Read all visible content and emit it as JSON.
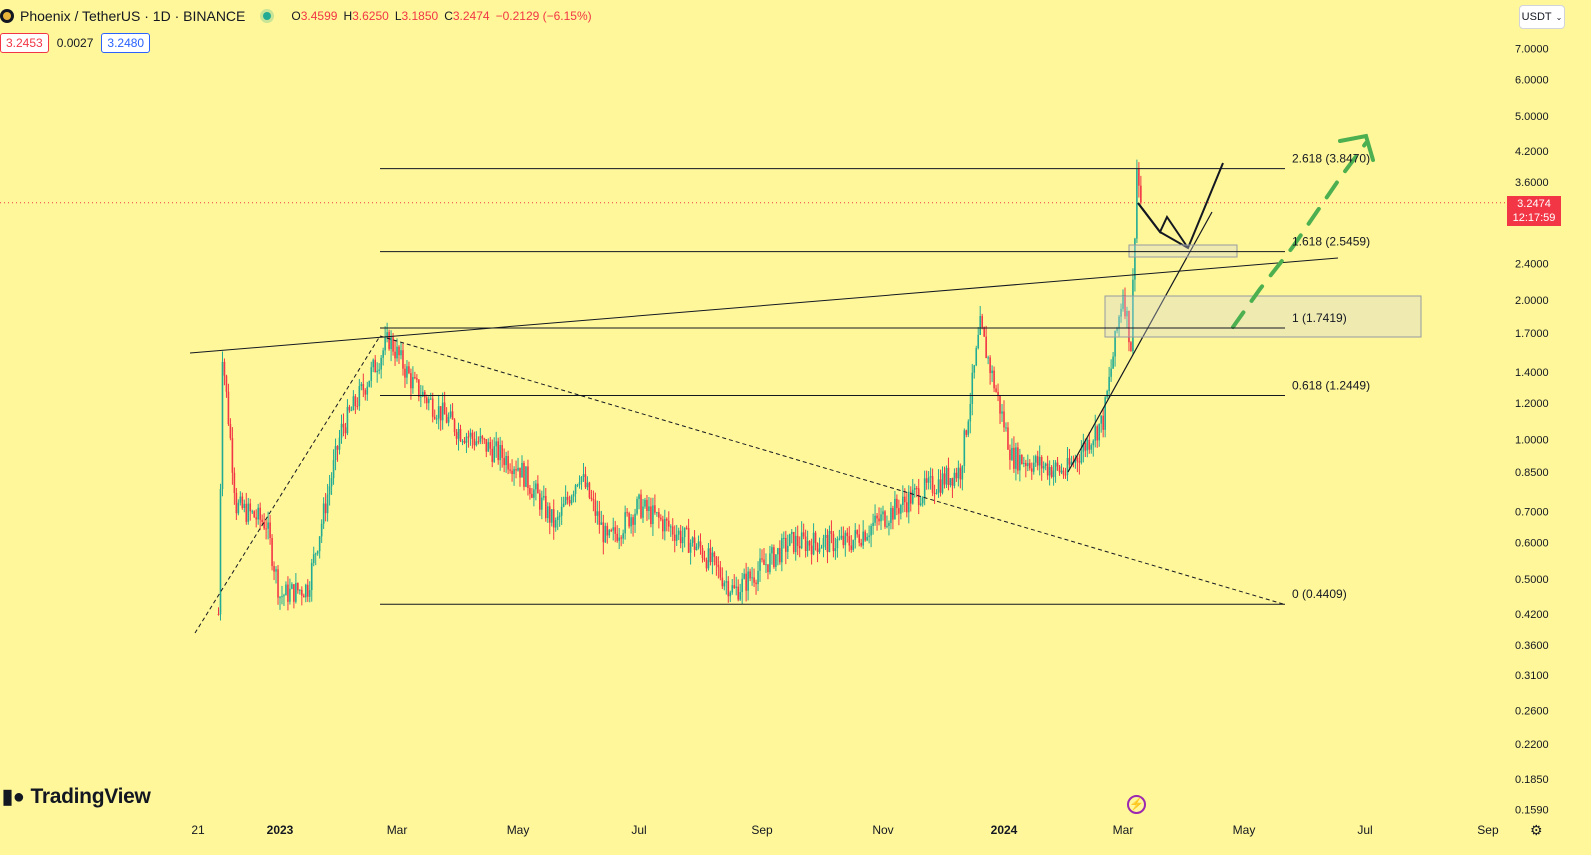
{
  "header": {
    "symbol": "Phoenix / TetherUS · 1D · BINANCE",
    "open_label": "O",
    "open": "3.4599",
    "high_label": "H",
    "high": "3.6250",
    "low_label": "L",
    "low": "3.1850",
    "close_label": "C",
    "close": "3.2474",
    "change": "−0.2129 (−6.15%)",
    "sell_price": "3.2453",
    "spread": "0.0027",
    "buy_price": "3.2480"
  },
  "currency_selector": "USDT",
  "last_price": {
    "value": "3.2474",
    "countdown": "12:17:59"
  },
  "branding": "TradingView",
  "colors": {
    "background": "#fff799",
    "up": "#22ab94",
    "down": "#f23645",
    "projection": "#4caf50",
    "line": "#131722"
  },
  "chart_data": {
    "type": "candlestick",
    "scale": "log",
    "ylim": [
      0.15,
      8.0
    ],
    "y_ticks": [
      "7.0000",
      "6.0000",
      "5.0000",
      "4.2000",
      "3.6000",
      "2.4000",
      "2.0000",
      "1.7000",
      "1.4000",
      "1.2000",
      "1.0000",
      "0.8500",
      "0.7000",
      "0.6000",
      "0.5000",
      "0.4200",
      "0.3600",
      "0.3100",
      "0.2600",
      "0.2200",
      "0.1850",
      "0.1590"
    ],
    "x_ticks": [
      "21",
      "2023",
      "Mar",
      "May",
      "Jul",
      "Sep",
      "Nov",
      "2024",
      "Mar",
      "May",
      "Jul",
      "Sep"
    ],
    "fib_levels": [
      {
        "ratio": "2.618",
        "label": "2.618 (3.8470)",
        "price": 3.847
      },
      {
        "ratio": "1.618",
        "label": "1.618 (2.5459)",
        "price": 2.5459
      },
      {
        "ratio": "1",
        "label": "1 (1.7419)",
        "price": 1.7419
      },
      {
        "ratio": "0.618",
        "label": "0.618 (1.2449)",
        "price": 1.2449
      },
      {
        "ratio": "0",
        "label": "0 (0.4409)",
        "price": 0.4409
      }
    ],
    "approximate_price_path": [
      {
        "date": "2022-12-01",
        "price": 0.42
      },
      {
        "date": "2022-12-03",
        "price": 1.55
      },
      {
        "date": "2022-12-10",
        "price": 0.72
      },
      {
        "date": "2022-12-25",
        "price": 0.66
      },
      {
        "date": "2023-01-01",
        "price": 0.46
      },
      {
        "date": "2023-01-15",
        "price": 0.48
      },
      {
        "date": "2023-02-01",
        "price": 1.05
      },
      {
        "date": "2023-02-25",
        "price": 1.65
      },
      {
        "date": "2023-03-10",
        "price": 1.3
      },
      {
        "date": "2023-04-01",
        "price": 1.05
      },
      {
        "date": "2023-05-01",
        "price": 0.88
      },
      {
        "date": "2023-05-20",
        "price": 0.65
      },
      {
        "date": "2023-06-01",
        "price": 0.85
      },
      {
        "date": "2023-06-15",
        "price": 0.6
      },
      {
        "date": "2023-07-01",
        "price": 0.72
      },
      {
        "date": "2023-08-01",
        "price": 0.58
      },
      {
        "date": "2023-08-18",
        "price": 0.47
      },
      {
        "date": "2023-09-15",
        "price": 0.6
      },
      {
        "date": "2023-10-15",
        "price": 0.6
      },
      {
        "date": "2023-11-15",
        "price": 0.75
      },
      {
        "date": "2023-12-10",
        "price": 0.86
      },
      {
        "date": "2023-12-20",
        "price": 1.75
      },
      {
        "date": "2024-01-05",
        "price": 0.92
      },
      {
        "date": "2024-02-01",
        "price": 0.85
      },
      {
        "date": "2024-02-20",
        "price": 1.1
      },
      {
        "date": "2024-03-01",
        "price": 2.1
      },
      {
        "date": "2024-03-05",
        "price": 1.6
      },
      {
        "date": "2024-03-08",
        "price": 3.85
      },
      {
        "date": "2024-03-10",
        "price": 3.25
      }
    ]
  }
}
